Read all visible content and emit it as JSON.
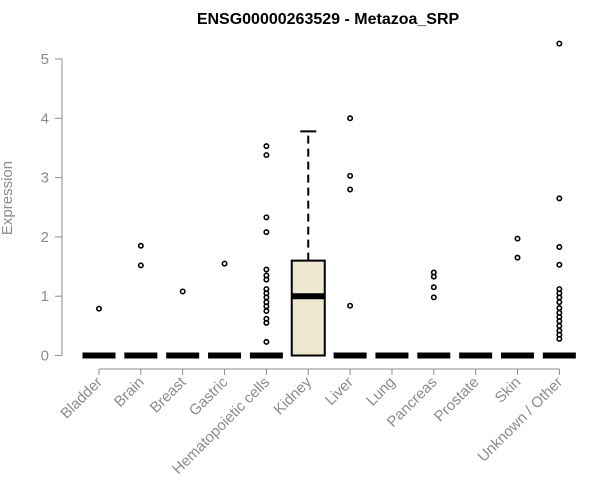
{
  "chart_data": {
    "type": "box",
    "title": "ENSG00000263529 - Metazoa_SRP",
    "xlabel": "",
    "ylabel": "Expression",
    "ylim": [
      0,
      5.3
    ],
    "yticks": [
      0,
      1,
      2,
      3,
      4,
      5
    ],
    "grid": false,
    "colors": {
      "axis": "#8c8c8c",
      "box_fill": "#efe8d0",
      "box_stroke": "#000000",
      "outlier": "#000000"
    },
    "categories": [
      "Bladder",
      "Brain",
      "Breast",
      "Gastric",
      "Hematopoietic cells",
      "Kidney",
      "Liver",
      "Lung",
      "Pancreas",
      "Prostate",
      "Skin",
      "Unknown / Other"
    ],
    "boxes": [
      {
        "category": "Bladder",
        "min": 0,
        "q1": 0,
        "median": 0,
        "q3": 0,
        "max": 0,
        "outliers": [
          0.79
        ]
      },
      {
        "category": "Brain",
        "min": 0,
        "q1": 0,
        "median": 0,
        "q3": 0,
        "max": 0,
        "outliers": [
          1.52,
          1.85
        ]
      },
      {
        "category": "Breast",
        "min": 0,
        "q1": 0,
        "median": 0,
        "q3": 0,
        "max": 0,
        "outliers": [
          1.08
        ]
      },
      {
        "category": "Gastric",
        "min": 0,
        "q1": 0,
        "median": 0,
        "q3": 0,
        "max": 0,
        "outliers": [
          1.55
        ]
      },
      {
        "category": "Hematopoietic cells",
        "min": 0,
        "q1": 0,
        "median": 0,
        "q3": 0,
        "max": 0,
        "outliers": [
          0.23,
          0.55,
          0.62,
          0.75,
          0.83,
          0.9,
          0.98,
          1.05,
          1.12,
          1.28,
          1.35,
          1.45,
          2.08,
          2.33,
          3.38,
          3.53
        ]
      },
      {
        "category": "Kidney",
        "min": 0,
        "q1": 0,
        "median": 1.0,
        "q3": 1.6,
        "max": 3.78,
        "outliers": []
      },
      {
        "category": "Liver",
        "min": 0,
        "q1": 0,
        "median": 0,
        "q3": 0,
        "max": 0,
        "outliers": [
          0.84,
          2.8,
          3.03,
          4.0
        ]
      },
      {
        "category": "Lung",
        "min": 0,
        "q1": 0,
        "median": 0,
        "q3": 0,
        "max": 0,
        "outliers": []
      },
      {
        "category": "Pancreas",
        "min": 0,
        "q1": 0,
        "median": 0,
        "q3": 0,
        "max": 0,
        "outliers": [
          0.98,
          1.15,
          1.33,
          1.4
        ]
      },
      {
        "category": "Prostate",
        "min": 0,
        "q1": 0,
        "median": 0,
        "q3": 0,
        "max": 0,
        "outliers": []
      },
      {
        "category": "Skin",
        "min": 0,
        "q1": 0,
        "median": 0,
        "q3": 0,
        "max": 0,
        "outliers": [
          1.65,
          1.97
        ]
      },
      {
        "category": "Unknown / Other",
        "min": 0,
        "q1": 0,
        "median": 0,
        "q3": 0,
        "max": 0,
        "outliers": [
          0.28,
          0.35,
          0.42,
          0.5,
          0.58,
          0.65,
          0.72,
          0.8,
          0.9,
          0.98,
          1.05,
          1.12,
          1.53,
          1.83,
          2.65,
          5.26
        ]
      }
    ]
  }
}
